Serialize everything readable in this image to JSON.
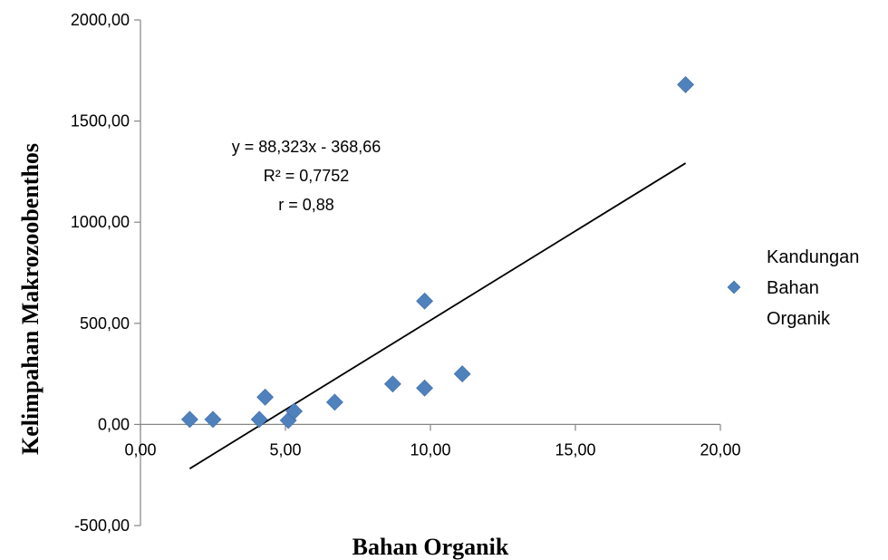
{
  "chart_data": {
    "type": "scatter",
    "xlabel": "Bahan Organik",
    "ylabel": "Kelimpahan Makrozoobenthos",
    "xlim": [
      0,
      20
    ],
    "ylim": [
      -500,
      2000
    ],
    "x_ticks": [
      0,
      5,
      10,
      15,
      20
    ],
    "y_ticks": [
      -500,
      0,
      500,
      1000,
      1500,
      2000
    ],
    "x_tick_labels": [
      "0,00",
      "5,00",
      "10,00",
      "15,00",
      "20,00"
    ],
    "y_tick_labels": [
      "-500,00",
      "0,00",
      "500,00",
      "1000,00",
      "1500,00",
      "2000,00"
    ],
    "grid": false,
    "legend_position": "right",
    "marker_color": "#4F81BD",
    "series": [
      {
        "name": "Kandungan Bahan Organik",
        "legend_lines": [
          "Kandungan",
          "Bahan",
          "Organik"
        ],
        "marker": "diamond",
        "points": [
          {
            "x": 1.7,
            "y": 25
          },
          {
            "x": 2.5,
            "y": 25
          },
          {
            "x": 4.1,
            "y": 25
          },
          {
            "x": 4.3,
            "y": 135
          },
          {
            "x": 5.1,
            "y": 20
          },
          {
            "x": 5.3,
            "y": 65
          },
          {
            "x": 6.7,
            "y": 110
          },
          {
            "x": 8.7,
            "y": 200
          },
          {
            "x": 9.8,
            "y": 610
          },
          {
            "x": 9.8,
            "y": 180
          },
          {
            "x": 11.1,
            "y": 250
          },
          {
            "x": 18.8,
            "y": 1680
          }
        ]
      }
    ],
    "trendline": {
      "slope": 88.323,
      "intercept": -368.66,
      "x_range": [
        1.7,
        18.8
      ],
      "color": "#000000"
    },
    "annotations": [
      "y = 88,323x - 368,66",
      "R² = 0,7752",
      "r = 0,88"
    ]
  }
}
